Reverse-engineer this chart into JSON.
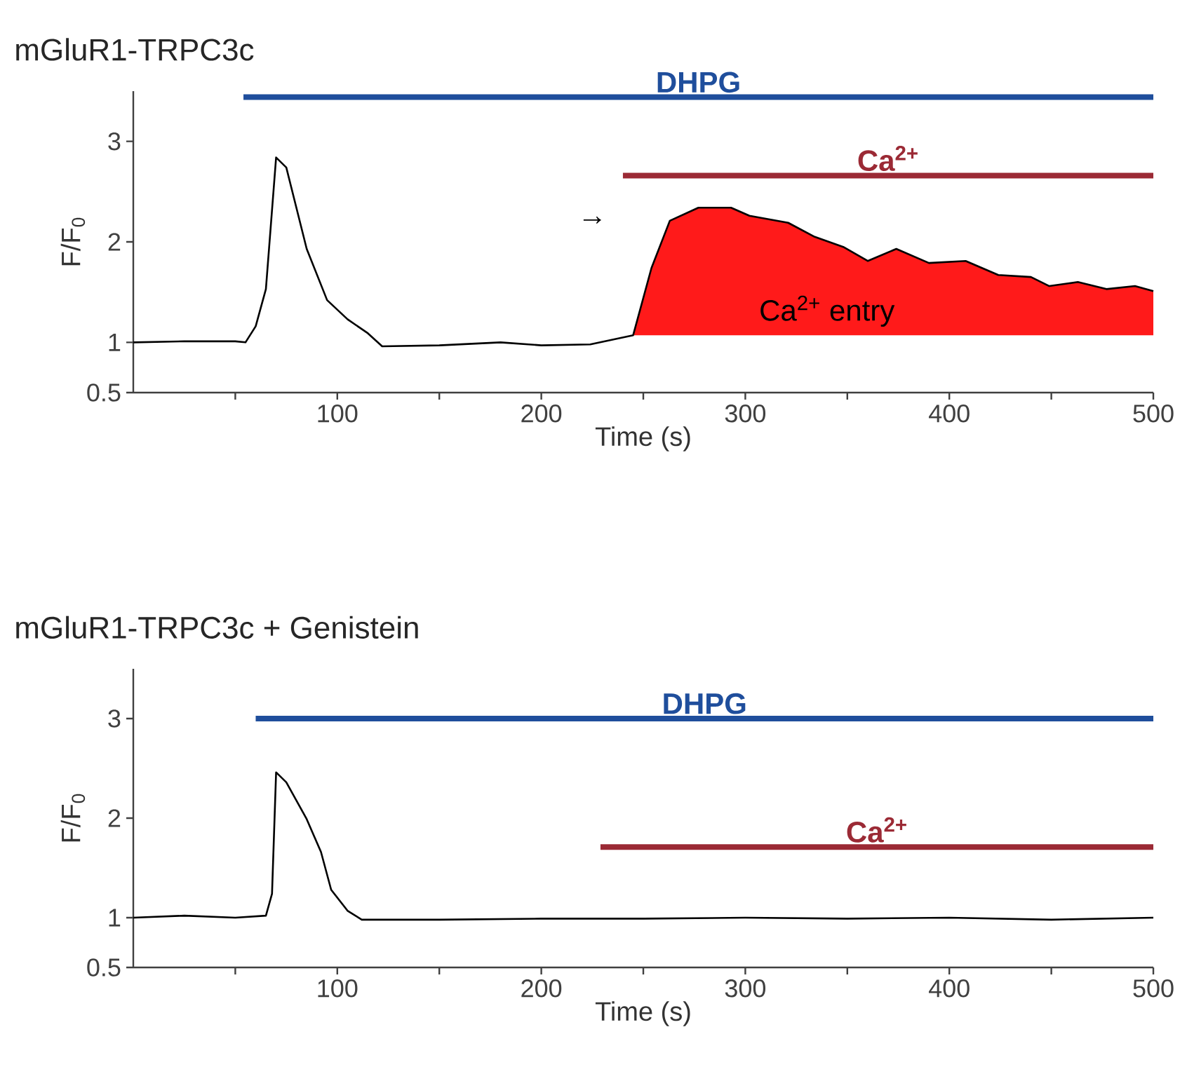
{
  "chart_data": [
    {
      "type": "line",
      "title": "mGluR1-TRPC3c",
      "xlabel": "Time (s)",
      "ylabel": "F/F$_{0}$",
      "xlim": [
        0,
        500
      ],
      "ylim": [
        0.5,
        3.5
      ],
      "xticks": [
        {
          "value": 50,
          "label": null
        },
        100,
        {
          "value": 150,
          "label": null
        },
        200,
        {
          "value": 250,
          "label": null
        },
        300,
        {
          "value": 350,
          "label": null
        },
        400,
        {
          "value": 450,
          "label": null
        },
        500
      ],
      "yticks": [
        0.5,
        1,
        2,
        3
      ],
      "annotations": [
        "→",
        "Ca$^{2+}$ entry"
      ],
      "series": [
        {
          "type": "area",
          "color": "#ff1a1a",
          "x": [
            245,
            254,
            263,
            277,
            293,
            302,
            321,
            334,
            348,
            360,
            374,
            390,
            408,
            424,
            440,
            449,
            463,
            477,
            491,
            500
          ],
          "values": [
            1.07,
            1.74,
            2.21,
            2.34,
            2.34,
            2.26,
            2.19,
            2.05,
            1.95,
            1.81,
            1.93,
            1.79,
            1.81,
            1.67,
            1.65,
            1.56,
            1.6,
            1.53,
            1.56,
            1.51
          ]
        },
        {
          "color": "#000000",
          "x": [
            0,
            25,
            50,
            55,
            60,
            65,
            70,
            75,
            85,
            95,
            105,
            115,
            122,
            150,
            180,
            200,
            224,
            245,
            254,
            263,
            277,
            293,
            302,
            321,
            334,
            348,
            360,
            374,
            390,
            408,
            424,
            440,
            449,
            463,
            477,
            491,
            500
          ],
          "values": [
            1.0,
            1.01,
            1.01,
            1.0,
            1.16,
            1.53,
            2.84,
            2.74,
            1.93,
            1.42,
            1.23,
            1.09,
            0.96,
            0.97,
            1.0,
            0.97,
            0.98,
            1.07,
            1.74,
            2.21,
            2.34,
            2.34,
            2.26,
            2.19,
            2.05,
            1.95,
            1.81,
            1.93,
            1.79,
            1.81,
            1.67,
            1.65,
            1.56,
            1.6,
            1.53,
            1.56,
            1.51
          ]
        },
        {
          "name": "DHPG",
          "color": "#1f4e9c",
          "x": [
            54,
            500
          ],
          "values": [
            3.44,
            3.44
          ]
        },
        {
          "name": "Ca$^{2+}$",
          "color": "#9b2a35",
          "x": [
            240,
            500
          ],
          "values": [
            2.66,
            2.66
          ]
        }
      ]
    },
    {
      "type": "line",
      "title": "mGluR1-TRPC3c + Genistein",
      "xlabel": "Time (s)",
      "ylabel": "F/F$_{0}$",
      "xlim": [
        0,
        500
      ],
      "ylim": [
        0.5,
        3.5
      ],
      "xticks": [
        {
          "value": 50,
          "label": null
        },
        100,
        {
          "value": 150,
          "label": null
        },
        200,
        {
          "value": 250,
          "label": null
        },
        300,
        {
          "value": 350,
          "label": null
        },
        400,
        {
          "value": 450,
          "label": null
        },
        500
      ],
      "yticks": [
        0.5,
        1,
        2,
        3
      ],
      "series": [
        {
          "color": "#000000",
          "x": [
            0,
            25,
            50,
            65,
            68,
            70,
            75,
            85,
            92,
            97,
            105,
            112,
            150,
            200,
            250,
            300,
            350,
            400,
            450,
            500
          ],
          "values": [
            1.0,
            1.02,
            1.0,
            1.02,
            1.24,
            2.46,
            2.36,
            1.99,
            1.66,
            1.28,
            1.07,
            0.98,
            0.98,
            0.99,
            0.99,
            1.0,
            0.99,
            1.0,
            0.98,
            1.0
          ]
        },
        {
          "name": "DHPG",
          "color": "#1f4e9c",
          "x": [
            60,
            500
          ],
          "values": [
            3.0,
            3.0
          ]
        },
        {
          "name": "Ca$^{2+}$",
          "color": "#9b2a35",
          "x": [
            229,
            500
          ],
          "values": [
            1.71,
            1.71
          ]
        }
      ]
    }
  ]
}
